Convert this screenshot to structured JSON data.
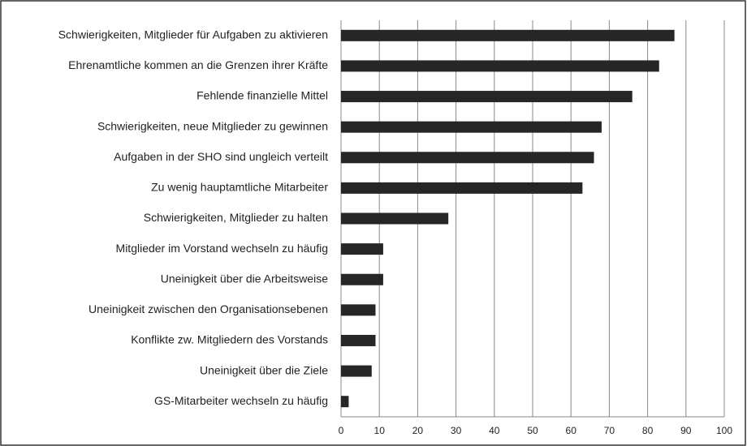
{
  "chart_data": {
    "type": "bar",
    "orientation": "horizontal",
    "categories": [
      "Schwierigkeiten, Mitglieder für Aufgaben zu aktivieren",
      "Ehrenamtliche kommen an die Grenzen ihrer Kräfte",
      "Fehlende finanzielle Mittel",
      "Schwierigkeiten, neue Mitglieder zu gewinnen",
      "Aufgaben in der SHO sind ungleich verteilt",
      "Zu wenig hauptamtliche Mitarbeiter",
      "Schwierigkeiten, Mitglieder zu halten",
      "Mitglieder im Vorstand wechseln zu häufig",
      "Uneinigkeit über die Arbeitsweise",
      "Uneinigkeit zwischen den Organisationsebenen",
      "Konflikte zw. Mitgliedern des Vorstands",
      "Uneinigkeit über die Ziele",
      "GS-Mitarbeiter wechseln zu häufig"
    ],
    "values": [
      87,
      83,
      76,
      68,
      66,
      63,
      28,
      11,
      11,
      9,
      9,
      8,
      2
    ],
    "color": "#262626",
    "xlim": [
      0,
      100
    ],
    "xticks": [
      0,
      10,
      20,
      30,
      40,
      50,
      60,
      70,
      80,
      90,
      100
    ],
    "grid": true
  }
}
